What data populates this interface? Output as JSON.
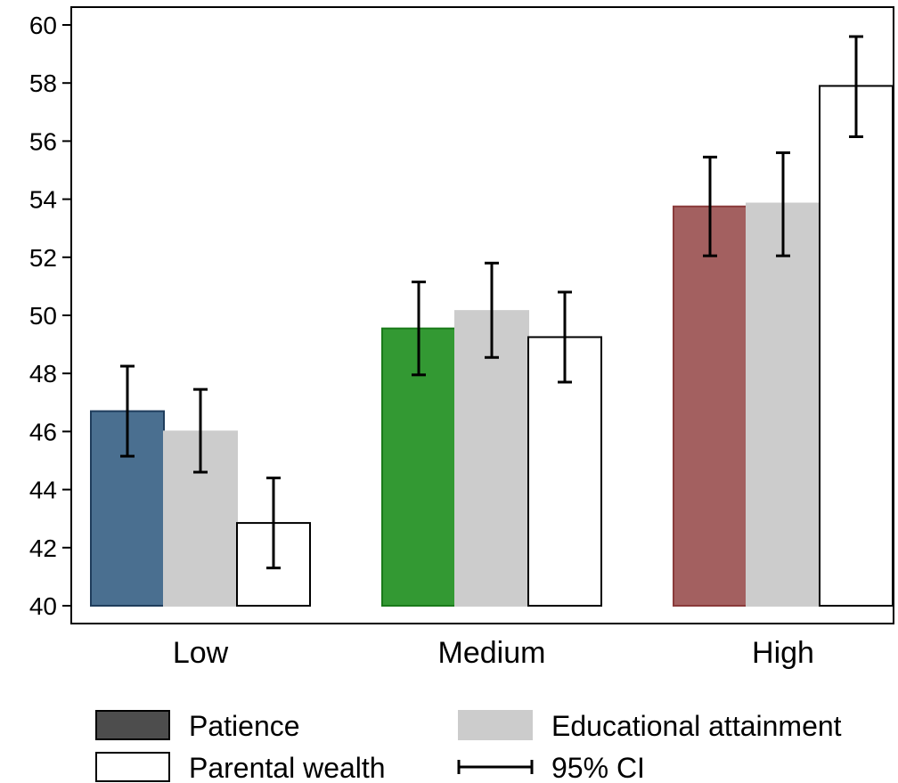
{
  "chart_data": {
    "type": "bar",
    "categories": [
      "Low",
      "Medium",
      "High"
    ],
    "series": [
      {
        "name": "Patience",
        "values": [
          46.7,
          49.55,
          53.75
        ],
        "ci_low": [
          45.15,
          47.95,
          52.05
        ],
        "ci_high": [
          48.25,
          51.15,
          55.45
        ]
      },
      {
        "name": "Educational attainment",
        "values": [
          46.0,
          50.15,
          53.85
        ],
        "ci_low": [
          44.6,
          48.55,
          52.05
        ],
        "ci_high": [
          47.45,
          51.8,
          55.6
        ]
      },
      {
        "name": "Parental wealth",
        "values": [
          42.85,
          49.25,
          57.9
        ],
        "ci_low": [
          41.3,
          47.7,
          56.15
        ],
        "ci_high": [
          44.4,
          50.8,
          59.6
        ]
      }
    ],
    "yticks": [
      40,
      42,
      44,
      46,
      48,
      50,
      52,
      54,
      56,
      58,
      60
    ],
    "ylim": [
      40,
      60
    ],
    "legend": {
      "placement": "bottom",
      "ci_label": "95% CI",
      "patience_swatch_color": "#4d4d4d"
    },
    "colors": {
      "patience_by_category": [
        "#4a6f90",
        "#339933",
        "#a36060"
      ],
      "patience_edge_by_category": [
        "#1f3d5c",
        "#1a7a1a",
        "#8a3a3a"
      ],
      "educational_attainment": "#cccccc",
      "parental_wealth": "#ffffff"
    },
    "grid": false
  }
}
